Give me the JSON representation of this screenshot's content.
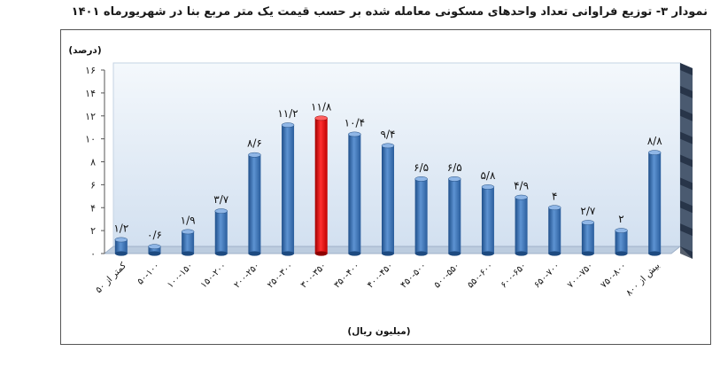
{
  "chart_data": {
    "type": "bar",
    "title": "نمودار ۳- توزیع فراوانی تعداد واحدهای مسکونی معامله شده بر حسب قیمت یک متر مربع بنا در شهریورماه ۱۴۰۱",
    "ylabel": "(درصد)",
    "xlabel": "(میلیون ریال)",
    "ylim": [
      0,
      16
    ],
    "yticks": [
      "۰",
      "۲",
      "۴",
      "۶",
      "۸",
      "۱۰",
      "۱۲",
      "۱۴",
      "۱۶"
    ],
    "categories": [
      "کمتر از ۵۰",
      "۵۰-۱۰۰",
      "۱۰۰-۱۵۰",
      "۱۵۰-۲۰۰",
      "۲۰۰-۲۵۰",
      "۲۵۰-۳۰۰",
      "۳۰۰-۳۵۰",
      "۳۵۰-۴۰۰",
      "۴۰۰-۴۵۰",
      "۴۵۰-۵۰۰",
      "۵۰۰-۵۵۰",
      "۵۵۰-۶۰۰",
      "۶۰۰-۶۵۰",
      "۶۵۰-۷۰۰",
      "۷۰۰-۷۵۰",
      "۷۵۰-۸۰۰",
      "بیش از ۸۰۰"
    ],
    "values": [
      1.2,
      0.6,
      1.9,
      3.7,
      8.6,
      11.2,
      11.8,
      10.4,
      9.4,
      6.5,
      6.5,
      5.8,
      4.9,
      4,
      2.7,
      2,
      8.8
    ],
    "value_labels": [
      "۱/۲",
      "۰/۶",
      "۱/۹",
      "۳/۷",
      "۸/۶",
      "۱۱/۲",
      "۱۱/۸",
      "۱۰/۴",
      "۹/۴",
      "۶/۵",
      "۶/۵",
      "۵/۸",
      "۴/۹",
      "۴",
      "۲/۷",
      "۲",
      "۸/۸"
    ],
    "highlight_index": 6,
    "grid": false,
    "colors": {
      "bar": "#3a73b8",
      "bar_dark": "#1d4a80",
      "highlight": "#e01010",
      "highlight_dark": "#8f0000",
      "wall": "#dfe9f5",
      "floor": "#bcccdf",
      "side_wall": "#4a5a70"
    }
  }
}
